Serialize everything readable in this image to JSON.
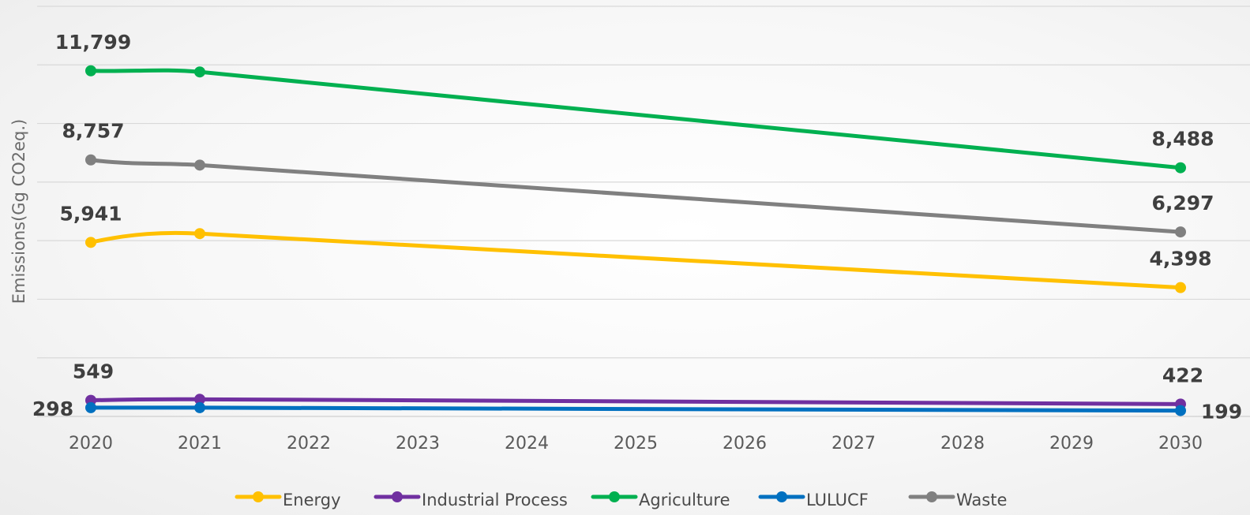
{
  "chart_data": {
    "type": "line",
    "title": "",
    "xlabel": "",
    "ylabel": "Emissions(Gg CO2eq.)",
    "categories": [
      "2020",
      "2021",
      "2022",
      "2023",
      "2024",
      "2025",
      "2026",
      "2027",
      "2028",
      "2029",
      "2030"
    ],
    "ylim": [
      0,
      14000
    ],
    "grid": true,
    "legend_position": "bottom",
    "series": [
      {
        "name": "Energy",
        "color": "#FFC000",
        "values": [
          5941,
          6240,
          null,
          null,
          null,
          null,
          null,
          null,
          null,
          null,
          4398
        ],
        "labels": {
          "0": "5,941",
          "10": "4,398"
        }
      },
      {
        "name": "Industrial Process",
        "color": "#7030A0",
        "values": [
          549,
          584,
          null,
          null,
          null,
          null,
          null,
          null,
          null,
          null,
          422
        ],
        "labels": {
          "0": "549",
          "10": "422"
        }
      },
      {
        "name": "Agriculture",
        "color": "#00B050",
        "values": [
          11799,
          11760,
          null,
          null,
          null,
          null,
          null,
          null,
          null,
          null,
          8488
        ],
        "labels": {
          "0": "11,799",
          "10": "8,488"
        }
      },
      {
        "name": "LULUCF",
        "color": "#0070C0",
        "values": [
          298,
          298,
          null,
          null,
          null,
          null,
          null,
          null,
          null,
          null,
          199
        ],
        "labels": {
          "0": "298",
          "10": "199"
        }
      },
      {
        "name": "Waste",
        "color": "#808080",
        "values": [
          8757,
          8580,
          null,
          null,
          null,
          null,
          null,
          null,
          null,
          null,
          6297
        ],
        "labels": {
          "0": "8,757",
          "10": "6,297"
        }
      }
    ]
  }
}
